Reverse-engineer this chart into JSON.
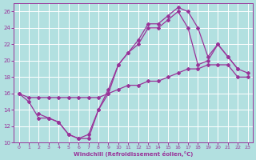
{
  "xlabel": "Windchill (Refroidissement éolien,°C)",
  "ylabel": "",
  "bg_color": "#b2e0e0",
  "grid_color": "#ffffff",
  "line_color": "#993399",
  "xlim": [
    -0.5,
    23.5
  ],
  "ylim": [
    10,
    27
  ],
  "xticks": [
    0,
    1,
    2,
    3,
    4,
    5,
    6,
    7,
    8,
    9,
    10,
    11,
    12,
    13,
    14,
    15,
    16,
    17,
    18,
    19,
    20,
    21,
    22,
    23
  ],
  "yticks": [
    10,
    12,
    14,
    16,
    18,
    20,
    22,
    24,
    26
  ],
  "curveA_x": [
    0,
    1,
    2,
    3,
    4,
    5,
    6,
    7,
    8,
    9,
    10,
    11,
    12,
    13,
    14,
    15,
    16,
    17,
    18,
    19,
    20,
    21,
    22,
    23
  ],
  "curveA_y": [
    16,
    15,
    13,
    13,
    12.5,
    11,
    10.5,
    11,
    14,
    16.5,
    19.5,
    21,
    22.5,
    24.5,
    24.5,
    25.5,
    26.5,
    26,
    24,
    20.5,
    22,
    20.5,
    19,
    18.5
  ],
  "curveB_x": [
    2,
    3,
    4,
    5,
    6,
    7,
    8,
    9,
    10,
    11,
    12,
    13,
    14,
    15,
    16,
    17,
    18,
    19,
    20,
    21,
    22
  ],
  "curveB_y": [
    13.5,
    13,
    12.5,
    11,
    10.5,
    10.5,
    14,
    16,
    19.5,
    21,
    22,
    24,
    24,
    25,
    26,
    24,
    19.5,
    20,
    22,
    20.5,
    19
  ],
  "curveC_x": [
    0,
    1,
    2,
    3,
    4,
    5,
    6,
    7,
    8,
    9,
    10,
    11,
    12,
    13,
    14,
    15,
    16,
    17,
    18,
    19,
    20,
    21,
    22,
    23
  ],
  "curveC_y": [
    16,
    15.5,
    15.5,
    15.5,
    15.5,
    15.5,
    15.5,
    15.5,
    15.5,
    16,
    16.5,
    17,
    17,
    17.5,
    17.5,
    18,
    18.5,
    19,
    19,
    19.5,
    19.5,
    19.5,
    18,
    18
  ]
}
